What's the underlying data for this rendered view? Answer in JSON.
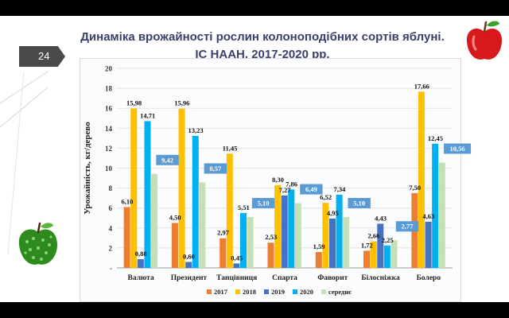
{
  "slide": {
    "title_line1": "Динаміка врожайності рослин колоноподібних сортів яблуні.",
    "title_line2": "ІС НААН, 2017-2020 рр.",
    "page_number": "24"
  },
  "colors": {
    "2017": "#ed7d31",
    "2018": "#ffc000",
    "2019": "#4472c4",
    "2020": "#00b0f0",
    "mean": "#c5e0b4",
    "mean_label_bg": "#5b9bd5"
  },
  "chart_data": {
    "type": "bar",
    "ylabel": "Урожайність, кг/дерево",
    "ylim": [
      0,
      20
    ],
    "yticks": [
      {
        "v": 0,
        "label": "-"
      },
      {
        "v": 2,
        "label": "2"
      },
      {
        "v": 4,
        "label": "4"
      },
      {
        "v": 6,
        "label": "6"
      },
      {
        "v": 8,
        "label": "8"
      },
      {
        "v": 10,
        "label": "10"
      },
      {
        "v": 12,
        "label": "12"
      },
      {
        "v": 14,
        "label": "14"
      },
      {
        "v": 16,
        "label": "16"
      },
      {
        "v": 18,
        "label": "18"
      },
      {
        "v": 20,
        "label": "20"
      }
    ],
    "categories": [
      "Валюта",
      "Президент",
      "Танцівниця",
      "Спарта",
      "Фаворит",
      "Білосніжка",
      "Болеро"
    ],
    "legend_position": "bottom",
    "series": [
      {
        "name": "2017",
        "key": "2017",
        "values": [
          6.1,
          4.5,
          2.97,
          2.53,
          1.59,
          1.72,
          7.5
        ],
        "labels": [
          "6,10",
          "4,50",
          "2,97",
          "2,53",
          "1,59",
          "1,72",
          "7,50"
        ]
      },
      {
        "name": "2018",
        "key": "2018",
        "values": [
          15.98,
          15.96,
          11.45,
          8.3,
          6.52,
          2.66,
          17.66
        ],
        "labels": [
          "15,98",
          "15,96",
          "11,45",
          "8,30",
          "6,52",
          "2,66",
          "17,66"
        ]
      },
      {
        "name": "2019",
        "key": "2019",
        "values": [
          0.88,
          0.6,
          0.45,
          7.27,
          4.95,
          4.43,
          4.63
        ],
        "labels": [
          "0,88",
          "0,60",
          "0,45",
          "7,27",
          "4,95",
          "4,43",
          "4,63"
        ]
      },
      {
        "name": "2020",
        "key": "2020",
        "values": [
          14.71,
          13.23,
          5.51,
          7.86,
          7.34,
          2.25,
          12.45
        ],
        "labels": [
          "14,71",
          "13,23",
          "5,51",
          "7,86",
          "7,34",
          "2,25",
          "12,45"
        ]
      },
      {
        "name": "середнє",
        "key": "mean",
        "values": [
          9.42,
          8.57,
          5.1,
          6.49,
          5.1,
          2.77,
          10.56
        ],
        "labels": [
          "9,42",
          "8,57",
          "5,10",
          "6,49",
          "5,10",
          "2,77",
          "10,56"
        ]
      }
    ]
  }
}
